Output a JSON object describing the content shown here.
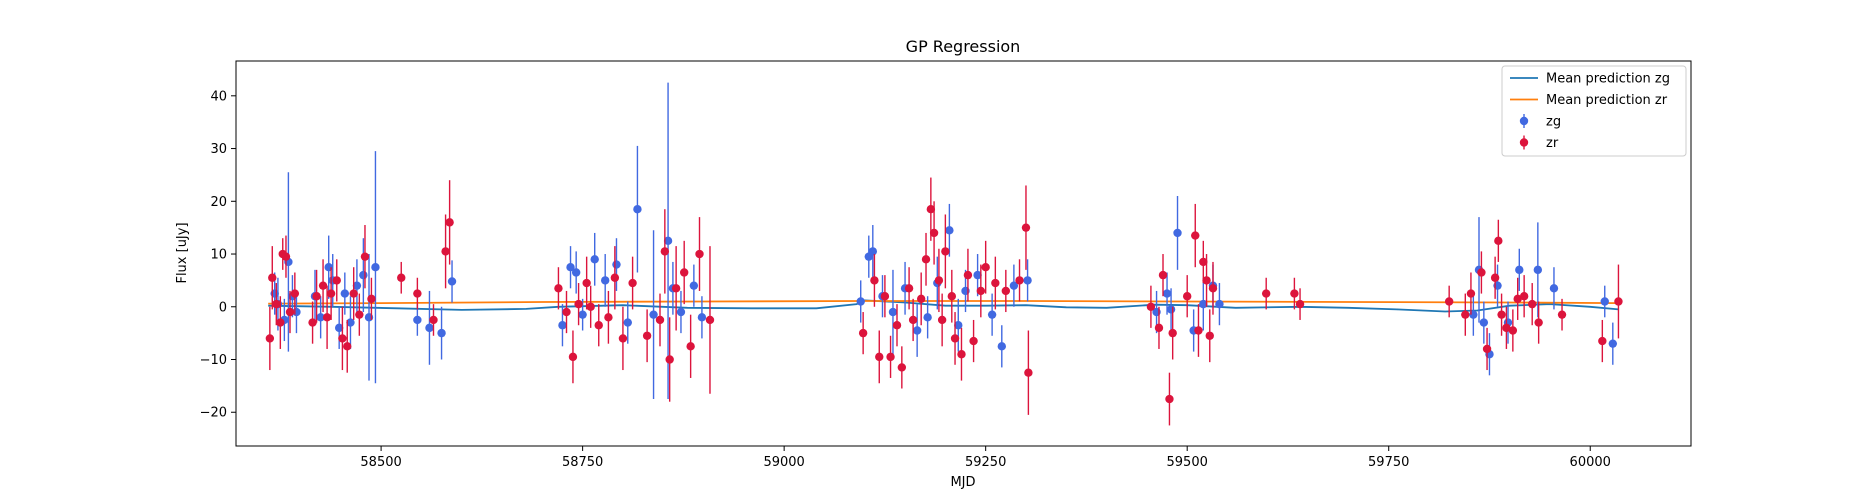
{
  "chart_data": {
    "type": "scatter",
    "title": "GP Regression",
    "xlabel": "MJD",
    "ylabel": "Flux [uJy]",
    "xlim": [
      58320,
      60125
    ],
    "ylim": [
      -26.4,
      46.6
    ],
    "xticks": [
      58500,
      58750,
      59000,
      59250,
      59500,
      59750,
      60000
    ],
    "yticks": [
      -20,
      -10,
      0,
      10,
      20,
      30,
      40
    ],
    "grid": false,
    "legend_position": "top-right",
    "legend": [
      "Mean prediction zg",
      "Mean prediction zr",
      "zg",
      "zr"
    ],
    "colors": {
      "zg_points": "#4169e1",
      "zr_points": "#dc143c",
      "mean_zg": "#1f77b4",
      "mean_zr": "#ff7f0e"
    },
    "series": [
      {
        "name": "Mean prediction zg",
        "kind": "line",
        "x": [
          58360,
          58440,
          58520,
          58600,
          58680,
          58720,
          58800,
          58880,
          58960,
          59040,
          59090,
          59100,
          59150,
          59200,
          59250,
          59300,
          59350,
          59400,
          59460,
          59500,
          59560,
          59640,
          59700,
          59760,
          59820,
          59860,
          59900,
          59950,
          60000,
          60035
        ],
        "y": [
          0.2,
          0.0,
          -0.3,
          -0.6,
          -0.4,
          0.0,
          0.3,
          -0.2,
          -0.3,
          -0.3,
          0.5,
          1.2,
          0.8,
          0.2,
          0.2,
          0.3,
          -0.1,
          -0.2,
          0.4,
          0.3,
          -0.2,
          0.0,
          -0.2,
          -0.5,
          -0.9,
          -0.7,
          0.2,
          0.5,
          0.0,
          -0.5
        ]
      },
      {
        "name": "Mean prediction zr",
        "kind": "line",
        "x": [
          58360,
          58500,
          58700,
          58900,
          59100,
          59300,
          59500,
          59700,
          59900,
          60035
        ],
        "y": [
          0.6,
          0.7,
          0.9,
          1.0,
          1.1,
          1.1,
          1.0,
          0.9,
          0.8,
          0.7
        ]
      },
      {
        "name": "zg",
        "kind": "errorbar",
        "x": [
          58368,
          58372,
          58380,
          58385,
          58390,
          58395,
          58418,
          58425,
          58435,
          58440,
          58448,
          58455,
          58462,
          58470,
          58478,
          58485,
          58493,
          58545,
          58560,
          58575,
          58588,
          58725,
          58735,
          58742,
          58750,
          58765,
          58778,
          58792,
          58806,
          58818,
          58838,
          58856,
          58862,
          58872,
          58888,
          58898,
          59095,
          59105,
          59110,
          59122,
          59135,
          59150,
          59165,
          59178,
          59190,
          59205,
          59216,
          59225,
          59240,
          59258,
          59270,
          59285,
          59302,
          59462,
          59475,
          59480,
          59488,
          59508,
          59520,
          59532,
          59540,
          59855,
          59862,
          59868,
          59875,
          59885,
          59898,
          59912,
          59935,
          59955,
          60018,
          60028
        ],
        "y": [
          2.5,
          0.5,
          -2.5,
          8.5,
          2.0,
          -1.0,
          2.0,
          -2.0,
          7.5,
          5.0,
          -4.0,
          2.5,
          -3.0,
          4.0,
          6.0,
          -2.0,
          7.5,
          -2.5,
          -4.0,
          -5.0,
          4.8,
          -3.5,
          7.5,
          6.5,
          -1.5,
          9.0,
          5.0,
          8.0,
          -3.0,
          18.5,
          -1.5,
          12.5,
          3.5,
          -1.0,
          4.0,
          -2.0,
          1.0,
          9.5,
          10.5,
          2.0,
          -1.0,
          3.5,
          -4.5,
          -2.0,
          4.5,
          14.5,
          -3.5,
          3.0,
          6.0,
          -1.5,
          -7.5,
          4.0,
          5.0,
          -1.0,
          2.5,
          -0.5,
          14.0,
          -4.5,
          0.5,
          4.0,
          0.5,
          -1.5,
          7.0,
          -3.0,
          -9.0,
          4.0,
          -3.0,
          7.0,
          7.0,
          3.5,
          1.0,
          -7.0
        ],
        "yerr": [
          4,
          5,
          4,
          17,
          4,
          4,
          5,
          4,
          6,
          5,
          4,
          4,
          5,
          5,
          7,
          12,
          22,
          3,
          7,
          5,
          4,
          4,
          4,
          4,
          3,
          5,
          5,
          5,
          4,
          12,
          16,
          30,
          5,
          4,
          4,
          4,
          4,
          4,
          5,
          4,
          8,
          5,
          5,
          4,
          5,
          5,
          5,
          4,
          4,
          4,
          4,
          4,
          4,
          4,
          4,
          4,
          7,
          4,
          5,
          4,
          4,
          4,
          10,
          4,
          4,
          4,
          4,
          4,
          9,
          4,
          3,
          4
        ]
      },
      {
        "name": "zr",
        "kind": "errorbar",
        "x": [
          58362,
          58365,
          58370,
          58375,
          58378,
          58382,
          58387,
          58393,
          58415,
          58420,
          58428,
          58433,
          58438,
          58445,
          58452,
          58458,
          58466,
          58473,
          58480,
          58488,
          58525,
          58545,
          58565,
          58580,
          58585,
          58720,
          58730,
          58738,
          58745,
          58755,
          58760,
          58770,
          58782,
          58790,
          58800,
          58812,
          58830,
          58846,
          58852,
          58858,
          58866,
          58876,
          58884,
          58895,
          58908,
          59098,
          59112,
          59118,
          59125,
          59132,
          59140,
          59146,
          59155,
          59160,
          59170,
          59176,
          59182,
          59186,
          59192,
          59196,
          59200,
          59208,
          59212,
          59220,
          59228,
          59235,
          59244,
          59250,
          59262,
          59275,
          59292,
          59300,
          59303,
          59455,
          59465,
          59470,
          59478,
          59482,
          59500,
          59510,
          59514,
          59520,
          59524,
          59528,
          59532,
          59598,
          59633,
          59640,
          59825,
          59845,
          59852,
          59865,
          59872,
          59882,
          59886,
          59890,
          59896,
          59904,
          59910,
          59918,
          59928,
          59936,
          59965,
          60015,
          60035
        ],
        "y": [
          -6.0,
          5.5,
          0.5,
          -3.0,
          10.0,
          9.5,
          -1.0,
          2.5,
          -3.0,
          2.0,
          4.0,
          -2.0,
          2.5,
          5.0,
          -6.0,
          -7.5,
          2.5,
          -1.5,
          9.5,
          1.5,
          5.5,
          2.5,
          -2.5,
          10.5,
          16.0,
          3.5,
          -1.0,
          -9.5,
          0.5,
          4.5,
          0.0,
          -3.5,
          -2.0,
          5.5,
          -6.0,
          4.5,
          -5.5,
          -2.5,
          10.5,
          -10.0,
          3.5,
          6.5,
          -7.5,
          10.0,
          -2.5,
          -5.0,
          5.0,
          -9.5,
          2.0,
          -9.5,
          -3.5,
          -11.5,
          3.5,
          -2.5,
          1.5,
          9.0,
          18.5,
          14.0,
          5.0,
          -2.5,
          10.5,
          2.0,
          -6.0,
          -9.0,
          6.0,
          -6.5,
          3.0,
          7.5,
          4.5,
          3.0,
          5.0,
          15.0,
          -12.5,
          0.0,
          -4.0,
          6.0,
          -17.5,
          -5.0,
          2.0,
          13.5,
          -4.5,
          8.5,
          5.0,
          -5.5,
          3.5,
          2.5,
          2.5,
          0.5,
          1.0,
          -1.5,
          2.5,
          6.5,
          -8.0,
          5.5,
          12.5,
          -1.5,
          -4.0,
          -4.5,
          1.5,
          2.0,
          0.5,
          -3.0,
          -1.5,
          -6.5,
          1.0
        ],
        "yerr": [
          6,
          6,
          4,
          5,
          3,
          4,
          4,
          4,
          4,
          5,
          5,
          6,
          5,
          4,
          6,
          5,
          5,
          4,
          6,
          4,
          3,
          3,
          3,
          7,
          8,
          4,
          4,
          5,
          4,
          5,
          4,
          4,
          5,
          6,
          6,
          5,
          5,
          5,
          8,
          8,
          8,
          6,
          6,
          7,
          14,
          4,
          5,
          5,
          4,
          4,
          4,
          4,
          4,
          4,
          5,
          5,
          6,
          6,
          6,
          5,
          7,
          5,
          5,
          5,
          5,
          4,
          5,
          5,
          5,
          4,
          4,
          8,
          8,
          4,
          4,
          4,
          5,
          5,
          4,
          6,
          5,
          4,
          5,
          5,
          5,
          3,
          3,
          3,
          3,
          4,
          4,
          4,
          4,
          4,
          4,
          4,
          4,
          4,
          4,
          4,
          4,
          4,
          3,
          4,
          7
        ]
      }
    ]
  }
}
